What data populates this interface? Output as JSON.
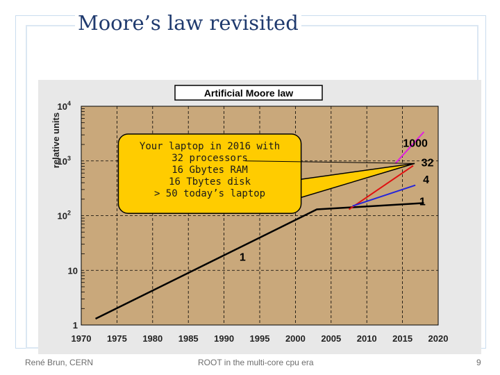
{
  "slide": {
    "title": "Moore’s law revisited",
    "footer_left": "René Brun, CERN",
    "footer_center": "ROOT in the multi-core cpu era",
    "page_number": "9"
  },
  "colors": {
    "plot_background": "#c9a87b",
    "outer_panel": "#e8e8e8",
    "callout_fill": "#ffcc00",
    "baseline": "#000000",
    "red_series": "#e01010",
    "blue_series": "#2525d8",
    "magenta_series": "#e020e0",
    "title_text": "#1f3a6e"
  },
  "chart_data": {
    "type": "line",
    "title": "Artificial Moore law",
    "ylabel": "relative units",
    "xlabel": "",
    "x_scale": "linear",
    "y_scale": "log",
    "xlim": [
      1970,
      2020
    ],
    "ylim": [
      1,
      10000
    ],
    "grid": true,
    "x_ticks": [
      "1970",
      "1975",
      "1980",
      "1985",
      "1990",
      "1995",
      "2000",
      "2005",
      "2010",
      "2015",
      "2020"
    ],
    "y_ticks": [
      {
        "value": 1,
        "base": "1",
        "exp": ""
      },
      {
        "value": 10,
        "base": "10",
        "exp": ""
      },
      {
        "value": 100,
        "base": "10",
        "exp": "2"
      },
      {
        "value": 1000,
        "base": "10",
        "exp": "3"
      },
      {
        "value": 10000,
        "base": "10",
        "exp": "4"
      }
    ],
    "series": [
      {
        "key": "baseline",
        "color": "#000000",
        "points": [
          [
            1972,
            1.3
          ],
          [
            2003,
            130
          ],
          [
            2018,
            170
          ]
        ]
      },
      {
        "key": "red",
        "color": "#e01010",
        "points": [
          [
            2007.5,
            130
          ],
          [
            2016.5,
            820
          ]
        ]
      },
      {
        "key": "blue",
        "color": "#2525d8",
        "points": [
          [
            2008,
            150
          ],
          [
            2016.8,
            360
          ]
        ]
      },
      {
        "key": "magenta",
        "color": "#e020e0",
        "points": [
          [
            2014,
            900
          ],
          [
            2018,
            3400
          ]
        ]
      },
      {
        "key": "callout-pointer",
        "color": "#000000",
        "points": [
          [
            1993,
            1000
          ],
          [
            2016.7,
            900
          ]
        ]
      }
    ],
    "annotations": [
      {
        "text": "1000",
        "x": 2016.8,
        "y": 1800
      },
      {
        "text": "32",
        "x": 2018.5,
        "y": 800
      },
      {
        "text": "4",
        "x": 2018.3,
        "y": 390
      },
      {
        "text": "1",
        "x": 2017.8,
        "y": 155
      },
      {
        "text": "1",
        "x": 1992.6,
        "y": 15
      }
    ],
    "callout": {
      "lines": [
        "Your laptop in 2016 with",
        "32 processors",
        "16 Gbytes RAM",
        "16 Tbytes disk",
        "> 50 today’s laptop"
      ]
    }
  }
}
